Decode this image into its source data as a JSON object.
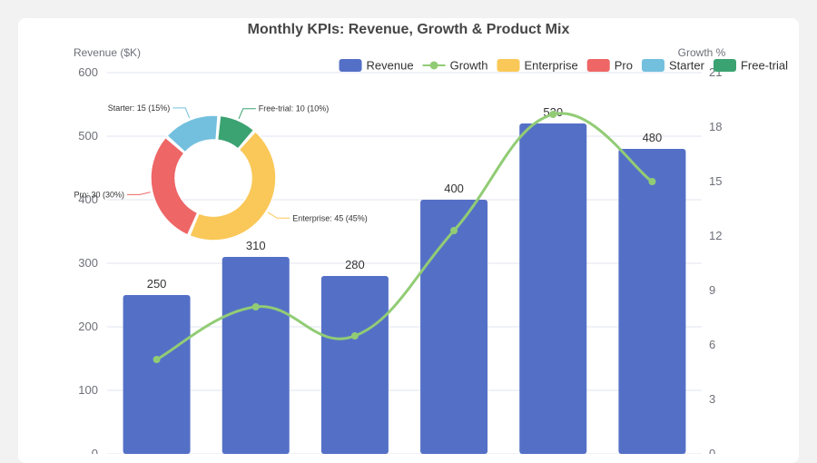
{
  "chart_data": {
    "type": "bar",
    "title": "Monthly KPIs: Revenue, Growth & Product Mix",
    "y_left": {
      "name": "Revenue ($K)",
      "min": 0,
      "max": 600,
      "ticks": [
        0,
        100,
        200,
        300,
        400,
        500,
        600
      ]
    },
    "y_right": {
      "name": "Growth %",
      "min": 0,
      "max": 21,
      "ticks": [
        0,
        3,
        6,
        9,
        12,
        15,
        18,
        21
      ]
    },
    "series": [
      {
        "name": "Revenue",
        "type": "bar",
        "color": "#5470c6",
        "values": [
          250,
          310,
          280,
          400,
          520,
          480
        ]
      },
      {
        "name": "Growth",
        "type": "line",
        "smooth": true,
        "color": "#91cc75",
        "values": [
          5.2,
          8.1,
          6.5,
          12.3,
          18.7,
          15
        ]
      }
    ],
    "pie": {
      "type": "pie",
      "donut": true,
      "slices": [
        {
          "name": "Enterprise",
          "value": 45,
          "percent": 45,
          "label": "Enterprise: 45 (45%)",
          "color": "#fac858"
        },
        {
          "name": "Pro",
          "value": 30,
          "percent": 30,
          "label": "Pro: 30 (30%)",
          "color": "#ee6666"
        },
        {
          "name": "Starter",
          "value": 15,
          "percent": 15,
          "label": "Starter: 15 (15%)",
          "color": "#73c0de"
        },
        {
          "name": "Free-trial",
          "value": 10,
          "percent": 10,
          "label": "Free-trial: 10 (10%)",
          "color": "#3ba272"
        }
      ]
    },
    "legend": {
      "position": "top-right",
      "items": [
        {
          "name": "Revenue",
          "color": "#5470c6",
          "shape": "rect"
        },
        {
          "name": "Growth",
          "color": "#91cc75",
          "shape": "line"
        },
        {
          "name": "Enterprise",
          "color": "#fac858",
          "shape": "rect"
        },
        {
          "name": "Pro",
          "color": "#ee6666",
          "shape": "rect"
        },
        {
          "name": "Starter",
          "color": "#73c0de",
          "shape": "rect"
        },
        {
          "name": "Free-trial",
          "color": "#3ba272",
          "shape": "rect"
        }
      ]
    }
  }
}
